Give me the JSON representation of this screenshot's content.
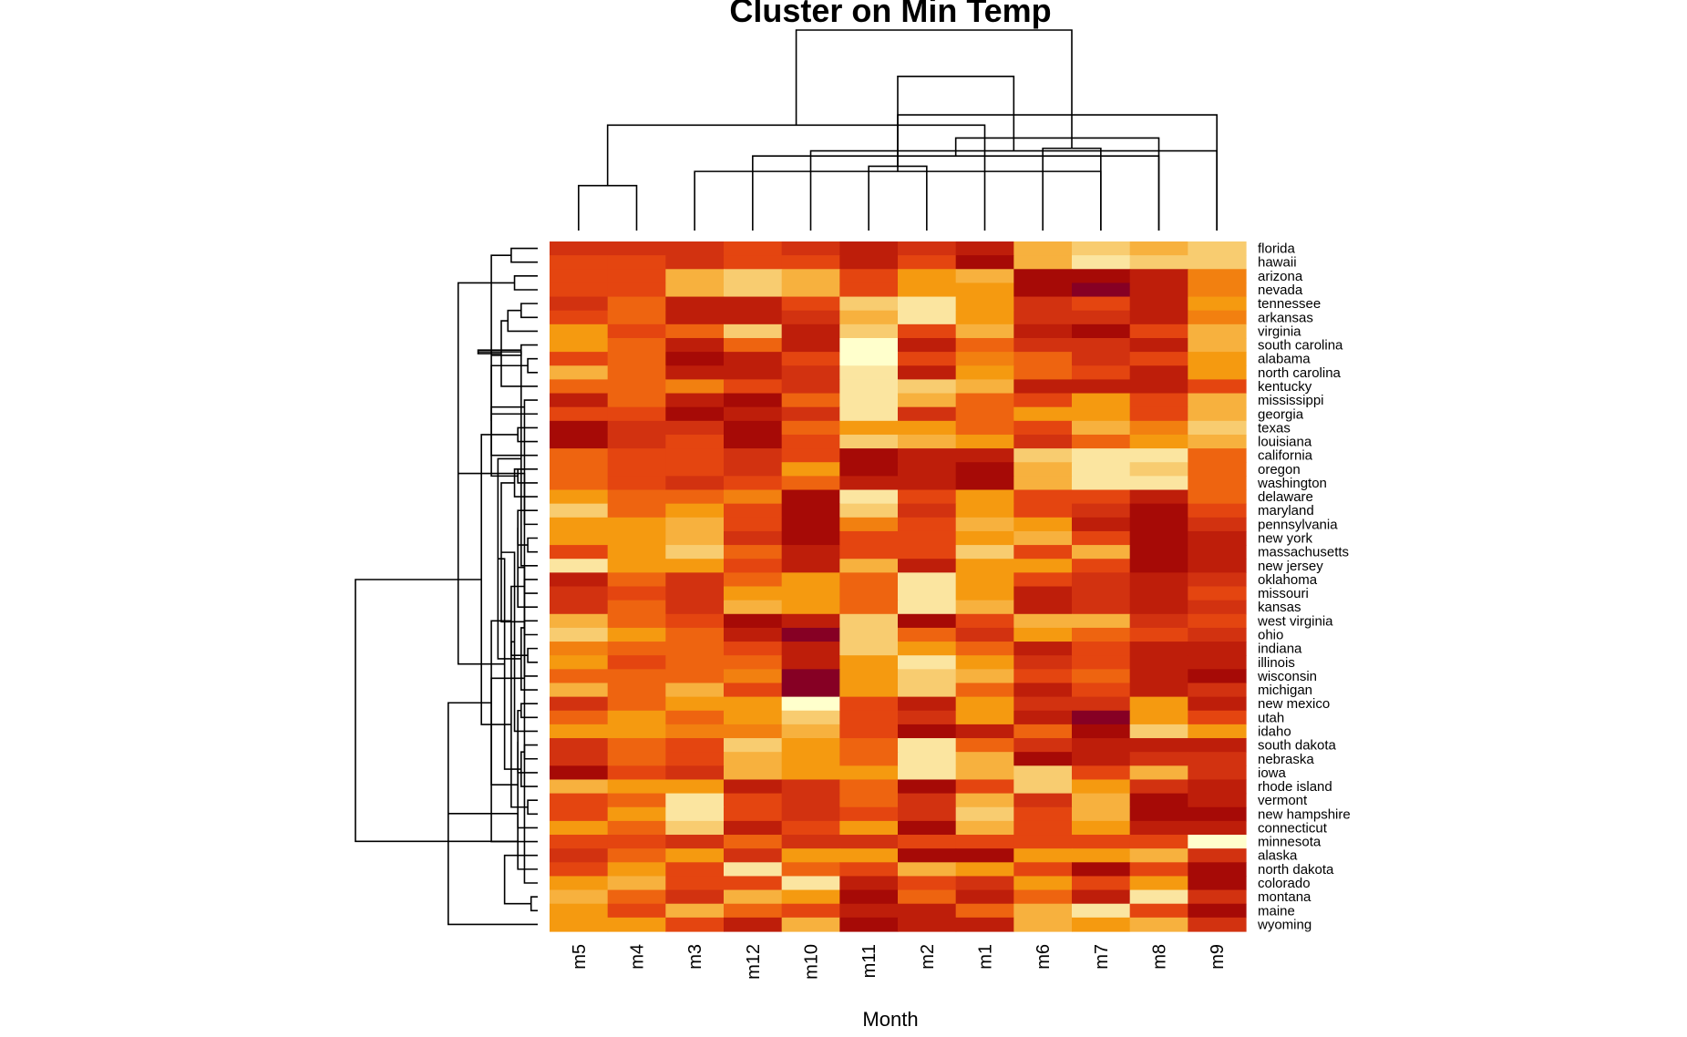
{
  "chart_data": {
    "type": "heatmap",
    "title": "Cluster on Min Temp",
    "xlabel": "Month",
    "ylabel": "",
    "columns": [
      "m5",
      "m4",
      "m3",
      "m12",
      "m10",
      "m11",
      "m2",
      "m1",
      "m6",
      "m7",
      "m8",
      "m9"
    ],
    "rows": [
      "florida",
      "hawaii",
      "arizona",
      "nevada",
      "tennessee",
      "arkansas",
      "virginia",
      "south carolina",
      "alabama",
      "north carolina",
      "kentucky",
      "mississippi",
      "georgia",
      "texas",
      "louisiana",
      "california",
      "oregon",
      "washington",
      "delaware",
      "maryland",
      "pennsylvania",
      "new york",
      "massachusetts",
      "new jersey",
      "oklahoma",
      "missouri",
      "kansas",
      "west virginia",
      "ohio",
      "indiana",
      "illinois",
      "wisconsin",
      "michigan",
      "new mexico",
      "utah",
      "idaho",
      "south dakota",
      "nebraska",
      "iowa",
      "rhode island",
      "vermont",
      "new hampshire",
      "connecticut",
      "minnesota",
      "alaska",
      "north dakota",
      "colorado",
      "montana",
      "maine",
      "wyoming"
    ],
    "value_scale": "rank within column (0 = lightest yellow, 1 = darkest red)",
    "colormap": [
      "#FFFFCC",
      "#FBE5A0",
      "#F8CC70",
      "#F7B13E",
      "#F59A10",
      "#F28010",
      "#EE6410",
      "#E44510",
      "#D23210",
      "#BE1E0A",
      "#A60A06",
      "#860024"
    ],
    "values": [
      [
        0.7,
        0.72,
        0.74,
        0.64,
        0.7,
        0.86,
        0.72,
        0.78,
        0.25,
        0.15,
        0.25,
        0.15
      ],
      [
        0.62,
        0.64,
        0.7,
        0.6,
        0.64,
        0.86,
        0.68,
        0.95,
        0.25,
        0.1,
        0.15,
        0.22
      ],
      [
        0.66,
        0.62,
        0.25,
        0.15,
        0.25,
        0.62,
        0.35,
        0.25,
        0.95,
        0.9,
        0.8,
        0.45
      ],
      [
        0.62,
        0.62,
        0.25,
        0.15,
        0.25,
        0.62,
        0.4,
        0.35,
        0.88,
        1.0,
        0.85,
        0.45
      ],
      [
        0.7,
        0.55,
        0.78,
        0.85,
        0.62,
        0.2,
        0.1,
        0.35,
        0.75,
        0.65,
        0.78,
        0.4
      ],
      [
        0.62,
        0.55,
        0.85,
        0.85,
        0.72,
        0.25,
        0.1,
        0.35,
        0.75,
        0.72,
        0.8,
        0.45
      ],
      [
        0.35,
        0.62,
        0.55,
        0.22,
        0.85,
        0.22,
        0.62,
        0.28,
        0.82,
        0.92,
        0.65,
        0.25
      ],
      [
        0.35,
        0.55,
        0.85,
        0.55,
        0.85,
        0.0,
        0.82,
        0.5,
        0.75,
        0.72,
        0.85,
        0.3
      ],
      [
        0.62,
        0.55,
        0.95,
        0.85,
        0.62,
        0.0,
        0.65,
        0.45,
        0.55,
        0.72,
        0.65,
        0.35
      ],
      [
        0.3,
        0.55,
        0.85,
        0.85,
        0.72,
        0.05,
        0.85,
        0.35,
        0.55,
        0.65,
        0.8,
        0.35
      ],
      [
        0.55,
        0.55,
        0.45,
        0.62,
        0.72,
        0.05,
        0.22,
        0.28,
        0.82,
        0.82,
        0.82,
        0.6
      ],
      [
        0.85,
        0.55,
        0.85,
        0.92,
        0.55,
        0.05,
        0.3,
        0.5,
        0.62,
        0.4,
        0.62,
        0.25
      ],
      [
        0.62,
        0.62,
        0.92,
        0.85,
        0.72,
        0.05,
        0.72,
        0.5,
        0.4,
        0.4,
        0.62,
        0.25
      ],
      [
        0.95,
        0.72,
        0.72,
        0.95,
        0.55,
        0.4,
        0.35,
        0.5,
        0.62,
        0.25,
        0.45,
        0.15
      ],
      [
        0.95,
        0.72,
        0.62,
        0.95,
        0.62,
        0.15,
        0.25,
        0.35,
        0.72,
        0.5,
        0.35,
        0.25
      ],
      [
        0.55,
        0.62,
        0.62,
        0.72,
        0.62,
        0.95,
        0.85,
        0.85,
        0.15,
        0.1,
        0.1,
        0.5
      ],
      [
        0.55,
        0.62,
        0.62,
        0.72,
        0.4,
        0.95,
        0.85,
        0.95,
        0.25,
        0.1,
        0.15,
        0.5
      ],
      [
        0.55,
        0.62,
        0.72,
        0.62,
        0.55,
        0.85,
        0.85,
        0.95,
        0.25,
        0.1,
        0.05,
        0.5
      ],
      [
        0.35,
        0.55,
        0.55,
        0.45,
        0.95,
        0.05,
        0.62,
        0.35,
        0.62,
        0.62,
        0.85,
        0.55
      ],
      [
        0.15,
        0.55,
        0.4,
        0.62,
        0.95,
        0.15,
        0.72,
        0.35,
        0.62,
        0.72,
        0.95,
        0.62
      ],
      [
        0.35,
        0.4,
        0.25,
        0.62,
        0.95,
        0.45,
        0.62,
        0.3,
        0.4,
        0.85,
        0.95,
        0.72
      ],
      [
        0.35,
        0.4,
        0.25,
        0.72,
        0.95,
        0.62,
        0.62,
        0.35,
        0.25,
        0.62,
        0.95,
        0.85
      ],
      [
        0.62,
        0.4,
        0.15,
        0.55,
        0.85,
        0.62,
        0.62,
        0.2,
        0.62,
        0.3,
        0.95,
        0.85
      ],
      [
        0.1,
        0.4,
        0.4,
        0.62,
        0.85,
        0.3,
        0.85,
        0.35,
        0.4,
        0.62,
        0.95,
        0.85
      ],
      [
        0.85,
        0.55,
        0.72,
        0.55,
        0.35,
        0.55,
        0.05,
        0.35,
        0.62,
        0.72,
        0.85,
        0.72
      ],
      [
        0.72,
        0.62,
        0.72,
        0.4,
        0.35,
        0.55,
        0.05,
        0.4,
        0.85,
        0.72,
        0.85,
        0.62
      ],
      [
        0.72,
        0.55,
        0.72,
        0.25,
        0.35,
        0.55,
        0.05,
        0.3,
        0.85,
        0.72,
        0.85,
        0.72
      ],
      [
        0.25,
        0.55,
        0.62,
        0.95,
        0.85,
        0.15,
        0.95,
        0.62,
        0.3,
        0.3,
        0.72,
        0.62
      ],
      [
        0.15,
        0.4,
        0.55,
        0.85,
        1.0,
        0.15,
        0.55,
        0.72,
        0.4,
        0.55,
        0.62,
        0.72
      ],
      [
        0.45,
        0.55,
        0.55,
        0.62,
        0.85,
        0.15,
        0.4,
        0.5,
        0.85,
        0.62,
        0.85,
        0.85
      ],
      [
        0.35,
        0.62,
        0.55,
        0.55,
        0.85,
        0.35,
        0.05,
        0.35,
        0.72,
        0.62,
        0.85,
        0.85
      ],
      [
        0.55,
        0.55,
        0.55,
        0.45,
        1.0,
        0.35,
        0.15,
        0.3,
        0.62,
        0.55,
        0.85,
        0.95
      ],
      [
        0.25,
        0.55,
        0.3,
        0.62,
        1.0,
        0.35,
        0.15,
        0.55,
        0.85,
        0.62,
        0.85,
        0.72
      ],
      [
        0.72,
        0.55,
        0.4,
        0.4,
        0.0,
        0.62,
        0.85,
        0.35,
        0.72,
        0.72,
        0.35,
        0.85
      ],
      [
        0.55,
        0.35,
        0.55,
        0.4,
        0.15,
        0.62,
        0.72,
        0.35,
        0.85,
        1.0,
        0.35,
        0.62
      ],
      [
        0.35,
        0.35,
        0.45,
        0.45,
        0.25,
        0.62,
        0.95,
        0.85,
        0.55,
        0.95,
        0.15,
        0.35
      ],
      [
        0.72,
        0.55,
        0.62,
        0.15,
        0.35,
        0.55,
        0.1,
        0.55,
        0.72,
        0.85,
        0.85,
        0.85
      ],
      [
        0.72,
        0.55,
        0.62,
        0.25,
        0.35,
        0.55,
        0.1,
        0.25,
        0.95,
        0.85,
        0.72,
        0.72
      ],
      [
        0.92,
        0.62,
        0.72,
        0.25,
        0.35,
        0.4,
        0.05,
        0.25,
        0.15,
        0.62,
        0.25,
        0.72
      ],
      [
        0.25,
        0.4,
        0.35,
        0.85,
        0.72,
        0.55,
        0.92,
        0.62,
        0.15,
        0.35,
        0.72,
        0.85
      ],
      [
        0.62,
        0.55,
        0.05,
        0.62,
        0.72,
        0.55,
        0.72,
        0.25,
        0.72,
        0.25,
        0.95,
        0.85
      ],
      [
        0.62,
        0.35,
        0.05,
        0.62,
        0.72,
        0.62,
        0.72,
        0.15,
        0.62,
        0.25,
        0.95,
        0.95
      ],
      [
        0.35,
        0.55,
        0.15,
        0.85,
        0.62,
        0.4,
        0.95,
        0.25,
        0.62,
        0.35,
        0.85,
        0.85
      ],
      [
        0.62,
        0.62,
        0.72,
        0.55,
        0.72,
        0.72,
        0.62,
        0.62,
        0.62,
        0.62,
        0.62,
        0.0
      ],
      [
        0.72,
        0.55,
        0.4,
        0.72,
        0.4,
        0.35,
        0.95,
        0.95,
        0.35,
        0.35,
        0.25,
        0.72
      ],
      [
        0.62,
        0.4,
        0.62,
        0.1,
        0.55,
        0.62,
        0.3,
        0.4,
        0.62,
        0.92,
        0.62,
        0.95
      ],
      [
        0.4,
        0.25,
        0.62,
        0.62,
        0.1,
        0.85,
        0.62,
        0.72,
        0.4,
        0.62,
        0.4,
        0.95
      ],
      [
        0.25,
        0.55,
        0.72,
        0.3,
        0.4,
        0.95,
        0.55,
        0.85,
        0.55,
        0.85,
        0.1,
        0.72
      ],
      [
        0.35,
        0.62,
        0.25,
        0.55,
        0.62,
        0.85,
        0.85,
        0.55,
        0.25,
        0.1,
        0.62,
        0.95
      ],
      [
        0.35,
        0.4,
        0.62,
        0.85,
        0.25,
        0.95,
        0.85,
        0.85,
        0.25,
        0.35,
        0.25,
        0.72
      ]
    ],
    "col_dendrogram": [
      [
        0,
        1,
        0.35
      ],
      [
        9,
        2,
        0.46
      ],
      [
        10,
        3,
        0.58
      ],
      [
        5,
        6,
        0.5
      ],
      [
        11,
        4,
        0.62
      ],
      [
        7,
        12,
        0.82
      ],
      [
        8,
        9,
        0.64
      ],
      [
        14,
        10,
        0.72
      ],
      [
        15,
        11,
        0.9
      ],
      [
        13,
        16,
        1.2
      ],
      [
        17,
        18,
        1.56
      ]
    ],
    "row_dendrogram": [
      [
        0,
        1,
        0.08
      ],
      [
        2,
        3,
        0.07
      ],
      [
        16,
        17,
        0.06
      ],
      [
        15,
        50,
        0.14
      ],
      [
        4,
        5,
        0.05
      ],
      [
        8,
        9,
        0.03
      ],
      [
        7,
        53,
        0.05
      ],
      [
        6,
        54,
        0.09
      ],
      [
        52,
        55,
        0.14
      ],
      [
        11,
        12,
        0.04
      ],
      [
        10,
        57,
        0.11
      ],
      [
        13,
        14,
        0.06
      ],
      [
        58,
        59,
        0.14
      ],
      [
        56,
        60,
        0.18
      ],
      [
        21,
        22,
        0.03
      ],
      [
        20,
        62,
        0.04
      ],
      [
        23,
        63,
        0.05
      ],
      [
        19,
        64,
        0.06
      ],
      [
        18,
        65,
        0.07
      ],
      [
        24,
        25,
        0.04
      ],
      [
        26,
        67,
        0.06
      ],
      [
        27,
        28,
        0.04
      ],
      [
        29,
        30,
        0.03
      ],
      [
        31,
        70,
        0.04
      ],
      [
        32,
        71,
        0.05
      ],
      [
        69,
        72,
        0.08
      ],
      [
        68,
        73,
        0.11
      ],
      [
        66,
        74,
        0.12
      ],
      [
        33,
        34,
        0.05
      ],
      [
        35,
        76,
        0.07
      ],
      [
        36,
        37,
        0.04
      ],
      [
        38,
        78,
        0.06
      ],
      [
        40,
        41,
        0.03
      ],
      [
        39,
        80,
        0.05
      ],
      [
        42,
        81,
        0.06
      ],
      [
        79,
        82,
        0.08
      ],
      [
        77,
        83,
        0.1
      ],
      [
        75,
        84,
        0.14
      ],
      [
        61,
        85,
        0.17
      ],
      [
        51,
        86,
        0.24
      ],
      [
        49,
        87,
        0.27
      ],
      [
        47,
        48,
        0.02
      ],
      [
        46,
        89,
        0.04
      ],
      [
        45,
        90,
        0.06
      ],
      [
        44,
        91,
        0.1
      ],
      [
        43,
        92,
        0.14
      ],
      [
        88,
        93,
        0.55
      ]
    ]
  }
}
